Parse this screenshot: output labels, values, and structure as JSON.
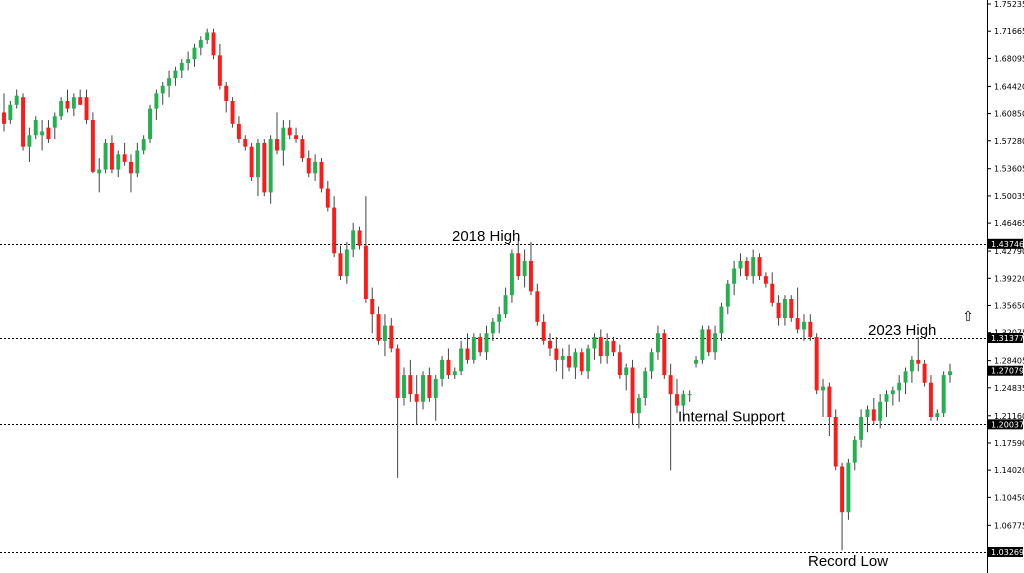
{
  "chart_data": {
    "type": "candlestick",
    "ylim": [
      1.0327,
      1.7524
    ],
    "y_ticks": [
      "1.75235",
      "1.71665",
      "1.68095",
      "1.64420",
      "1.60850",
      "1.57280",
      "1.53605",
      "1.50035",
      "1.46465",
      "1.42790",
      "1.39220",
      "1.35650",
      "1.32075",
      "1.28405",
      "1.24835",
      "1.21160",
      "1.17590",
      "1.14020",
      "1.10450",
      "1.06775"
    ],
    "grid": false,
    "colors": {
      "up": "#22b14c",
      "down": "#ff1a1a",
      "wick": "#444444",
      "level_line": "#000000",
      "tag_bg": "#000000",
      "tag_text": "#ffffff"
    },
    "levels": [
      {
        "value": 1.43746,
        "tag": "1.43746",
        "label": "2018 High"
      },
      {
        "value": 1.31377,
        "tag": "1.31377",
        "label": "2023 High"
      },
      {
        "value": 1.27079,
        "tag": "1.27079",
        "label": ""
      },
      {
        "value": 1.20037,
        "tag": "1.20037",
        "label": "Internal Support"
      },
      {
        "value": 1.03269,
        "tag": "1.03269",
        "label": "Record Low"
      }
    ],
    "ohlc": [
      [
        1.61,
        1.635,
        1.585,
        1.595
      ],
      [
        1.6,
        1.625,
        1.595,
        1.62
      ],
      [
        1.62,
        1.64,
        1.615,
        1.632
      ],
      [
        1.63,
        1.635,
        1.56,
        1.565
      ],
      [
        1.565,
        1.59,
        1.545,
        1.58
      ],
      [
        1.58,
        1.605,
        1.575,
        1.6
      ],
      [
        1.58,
        1.6,
        1.56,
        1.585
      ],
      [
        1.59,
        1.6,
        1.57,
        1.575
      ],
      [
        1.59,
        1.61,
        1.575,
        1.605
      ],
      [
        1.605,
        1.63,
        1.6,
        1.625
      ],
      [
        1.625,
        1.64,
        1.61,
        1.615
      ],
      [
        1.615,
        1.635,
        1.605,
        1.63
      ],
      [
        1.63,
        1.64,
        1.62,
        1.62
      ],
      [
        1.63,
        1.64,
        1.595,
        1.6
      ],
      [
        1.6,
        1.61,
        1.53,
        1.532
      ],
      [
        1.53,
        1.55,
        1.505,
        1.535
      ],
      [
        1.535,
        1.575,
        1.53,
        1.57
      ],
      [
        1.57,
        1.58,
        1.53,
        1.535
      ],
      [
        1.535,
        1.56,
        1.525,
        1.555
      ],
      [
        1.555,
        1.57,
        1.54,
        1.545
      ],
      [
        1.545,
        1.555,
        1.505,
        1.53
      ],
      [
        1.53,
        1.57,
        1.525,
        1.56
      ],
      [
        1.56,
        1.58,
        1.555,
        1.575
      ],
      [
        1.575,
        1.62,
        1.57,
        1.615
      ],
      [
        1.615,
        1.64,
        1.6,
        1.635
      ],
      [
        1.635,
        1.65,
        1.62,
        1.645
      ],
      [
        1.645,
        1.665,
        1.63,
        1.655
      ],
      [
        1.655,
        1.67,
        1.645,
        1.665
      ],
      [
        1.665,
        1.68,
        1.655,
        1.675
      ],
      [
        1.675,
        1.69,
        1.665,
        1.68
      ],
      [
        1.68,
        1.7,
        1.67,
        1.695
      ],
      [
        1.695,
        1.71,
        1.685,
        1.705
      ],
      [
        1.705,
        1.72,
        1.7,
        1.715
      ],
      [
        1.715,
        1.72,
        1.68,
        1.685
      ],
      [
        1.685,
        1.7,
        1.64,
        1.645
      ],
      [
        1.645,
        1.65,
        1.61,
        1.625
      ],
      [
        1.625,
        1.63,
        1.59,
        1.595
      ],
      [
        1.595,
        1.605,
        1.57,
        1.575
      ],
      [
        1.575,
        1.58,
        1.56,
        1.565
      ],
      [
        1.565,
        1.57,
        1.52,
        1.525
      ],
      [
        1.525,
        1.575,
        1.5,
        1.57
      ],
      [
        1.57,
        1.575,
        1.5,
        1.505
      ],
      [
        1.505,
        1.58,
        1.49,
        1.575
      ],
      [
        1.575,
        1.61,
        1.555,
        1.56
      ],
      [
        1.56,
        1.6,
        1.54,
        1.59
      ],
      [
        1.59,
        1.6,
        1.575,
        1.58
      ],
      [
        1.58,
        1.59,
        1.57,
        1.575
      ],
      [
        1.575,
        1.58,
        1.545,
        1.55
      ],
      [
        1.55,
        1.56,
        1.525,
        1.53
      ],
      [
        1.53,
        1.555,
        1.52,
        1.545
      ],
      [
        1.545,
        1.55,
        1.505,
        1.51
      ],
      [
        1.51,
        1.52,
        1.48,
        1.485
      ],
      [
        1.485,
        1.5,
        1.42,
        1.425
      ],
      [
        1.425,
        1.435,
        1.39,
        1.395
      ],
      [
        1.395,
        1.44,
        1.385,
        1.43
      ],
      [
        1.43,
        1.465,
        1.42,
        1.455
      ],
      [
        1.455,
        1.46,
        1.43,
        1.435
      ],
      [
        1.435,
        1.5,
        1.36,
        1.365
      ],
      [
        1.365,
        1.38,
        1.32,
        1.345
      ],
      [
        1.345,
        1.355,
        1.305,
        1.31
      ],
      [
        1.31,
        1.345,
        1.29,
        1.33
      ],
      [
        1.33,
        1.34,
        1.295,
        1.3
      ],
      [
        1.3,
        1.305,
        1.13,
        1.235
      ],
      [
        1.235,
        1.275,
        1.225,
        1.265
      ],
      [
        1.265,
        1.285,
        1.23,
        1.24
      ],
      [
        1.24,
        1.265,
        1.2,
        1.23
      ],
      [
        1.23,
        1.27,
        1.22,
        1.265
      ],
      [
        1.265,
        1.275,
        1.23,
        1.235
      ],
      [
        1.235,
        1.265,
        1.205,
        1.26
      ],
      [
        1.26,
        1.29,
        1.25,
        1.285
      ],
      [
        1.285,
        1.3,
        1.26,
        1.265
      ],
      [
        1.265,
        1.275,
        1.26,
        1.27
      ],
      [
        1.27,
        1.31,
        1.265,
        1.3
      ],
      [
        1.3,
        1.32,
        1.28,
        1.285
      ],
      [
        1.285,
        1.32,
        1.28,
        1.315
      ],
      [
        1.315,
        1.32,
        1.29,
        1.295
      ],
      [
        1.295,
        1.33,
        1.285,
        1.32
      ],
      [
        1.32,
        1.34,
        1.31,
        1.335
      ],
      [
        1.335,
        1.355,
        1.32,
        1.345
      ],
      [
        1.345,
        1.38,
        1.34,
        1.37
      ],
      [
        1.37,
        1.43,
        1.36,
        1.425
      ],
      [
        1.425,
        1.445,
        1.39,
        1.395
      ],
      [
        1.395,
        1.43,
        1.38,
        1.415
      ],
      [
        1.415,
        1.44,
        1.37,
        1.375
      ],
      [
        1.375,
        1.385,
        1.33,
        1.335
      ],
      [
        1.335,
        1.345,
        1.305,
        1.31
      ],
      [
        1.31,
        1.32,
        1.29,
        1.3
      ],
      [
        1.3,
        1.315,
        1.27,
        1.285
      ],
      [
        1.285,
        1.3,
        1.26,
        1.29
      ],
      [
        1.29,
        1.305,
        1.27,
        1.275
      ],
      [
        1.275,
        1.3,
        1.26,
        1.295
      ],
      [
        1.295,
        1.3,
        1.265,
        1.27
      ],
      [
        1.27,
        1.305,
        1.26,
        1.3
      ],
      [
        1.3,
        1.32,
        1.285,
        1.315
      ],
      [
        1.315,
        1.325,
        1.28,
        1.29
      ],
      [
        1.29,
        1.32,
        1.28,
        1.31
      ],
      [
        1.31,
        1.315,
        1.29,
        1.295
      ],
      [
        1.295,
        1.305,
        1.26,
        1.265
      ],
      [
        1.265,
        1.28,
        1.245,
        1.275
      ],
      [
        1.275,
        1.285,
        1.2,
        1.215
      ],
      [
        1.215,
        1.24,
        1.195,
        1.235
      ],
      [
        1.235,
        1.275,
        1.225,
        1.27
      ],
      [
        1.27,
        1.3,
        1.26,
        1.295
      ],
      [
        1.295,
        1.33,
        1.285,
        1.32
      ],
      [
        1.32,
        1.325,
        1.26,
        1.265
      ],
      [
        1.265,
        1.28,
        1.14,
        1.24
      ],
      [
        1.24,
        1.26,
        1.215,
        1.225
      ],
      [
        1.225,
        1.245,
        1.205,
        1.24
      ],
      [
        1.24,
        1.245,
        1.23,
        1.24
      ],
      [
        1.28,
        1.29,
        1.275,
        1.285
      ],
      [
        1.285,
        1.33,
        1.28,
        1.325
      ],
      [
        1.325,
        1.33,
        1.29,
        1.295
      ],
      [
        1.295,
        1.33,
        1.285,
        1.32
      ],
      [
        1.32,
        1.36,
        1.31,
        1.355
      ],
      [
        1.355,
        1.39,
        1.345,
        1.385
      ],
      [
        1.385,
        1.415,
        1.37,
        1.405
      ],
      [
        1.405,
        1.425,
        1.395,
        1.415
      ],
      [
        1.415,
        1.42,
        1.39,
        1.395
      ],
      [
        1.395,
        1.43,
        1.385,
        1.42
      ],
      [
        1.42,
        1.425,
        1.39,
        1.395
      ],
      [
        1.395,
        1.4,
        1.38,
        1.385
      ],
      [
        1.385,
        1.4,
        1.355,
        1.36
      ],
      [
        1.36,
        1.37,
        1.33,
        1.34
      ],
      [
        1.34,
        1.37,
        1.33,
        1.365
      ],
      [
        1.365,
        1.37,
        1.335,
        1.34
      ],
      [
        1.34,
        1.38,
        1.32,
        1.325
      ],
      [
        1.325,
        1.345,
        1.31,
        1.335
      ],
      [
        1.335,
        1.345,
        1.31,
        1.315
      ],
      [
        1.315,
        1.32,
        1.24,
        1.245
      ],
      [
        1.245,
        1.26,
        1.21,
        1.25
      ],
      [
        1.25,
        1.255,
        1.185,
        1.21
      ],
      [
        1.21,
        1.22,
        1.14,
        1.145
      ],
      [
        1.145,
        1.15,
        1.035,
        1.085
      ],
      [
        1.085,
        1.155,
        1.075,
        1.15
      ],
      [
        1.15,
        1.185,
        1.14,
        1.18
      ],
      [
        1.18,
        1.22,
        1.17,
        1.21
      ],
      [
        1.21,
        1.225,
        1.19,
        1.22
      ],
      [
        1.22,
        1.235,
        1.2,
        1.205
      ],
      [
        1.205,
        1.24,
        1.195,
        1.23
      ],
      [
        1.23,
        1.245,
        1.21,
        1.24
      ],
      [
        1.24,
        1.25,
        1.225,
        1.245
      ],
      [
        1.245,
        1.265,
        1.23,
        1.255
      ],
      [
        1.255,
        1.275,
        1.24,
        1.27
      ],
      [
        1.27,
        1.29,
        1.255,
        1.285
      ],
      [
        1.285,
        1.315,
        1.27,
        1.28
      ],
      [
        1.28,
        1.285,
        1.25,
        1.255
      ],
      [
        1.255,
        1.265,
        1.205,
        1.21
      ],
      [
        1.21,
        1.22,
        1.205,
        1.215
      ],
      [
        1.215,
        1.27,
        1.21,
        1.265
      ],
      [
        1.265,
        1.28,
        1.255,
        1.27
      ]
    ]
  },
  "price_marker": {
    "icon": "up-arrow-icon",
    "glyph": "⇧"
  }
}
